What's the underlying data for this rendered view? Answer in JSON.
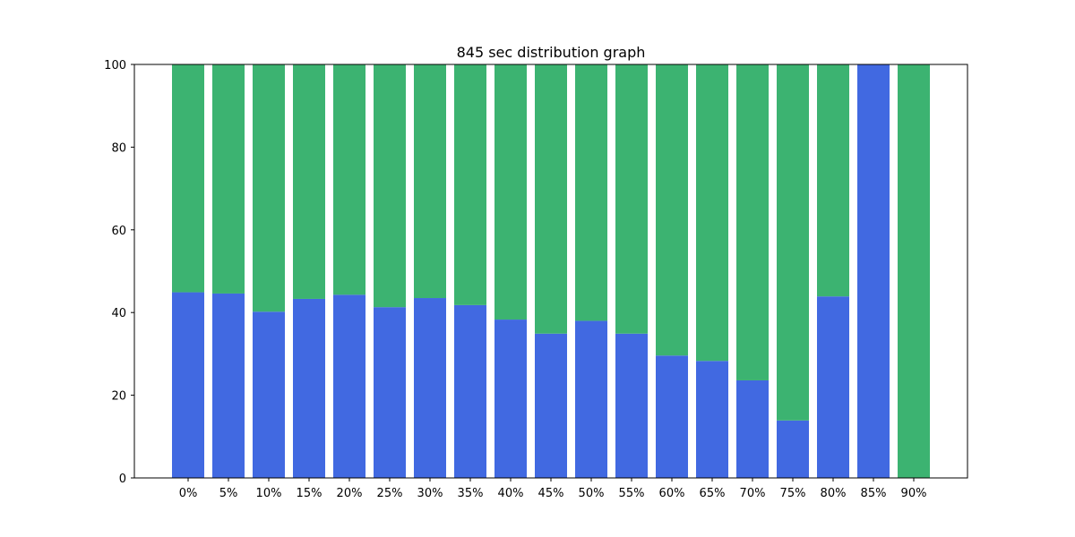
{
  "chart_data": {
    "type": "bar",
    "stacked": true,
    "title": "845 sec distribution graph",
    "xlabel": "",
    "ylabel": "",
    "categories": [
      "0%",
      "5%",
      "10%",
      "15%",
      "20%",
      "25%",
      "30%",
      "35%",
      "40%",
      "45%",
      "50%",
      "55%",
      "60%",
      "65%",
      "70%",
      "75%",
      "80%",
      "85%",
      "90%"
    ],
    "series": [
      {
        "color": "#4169e1",
        "values": [
          44.9,
          44.6,
          40.2,
          43.3,
          44.3,
          41.3,
          43.5,
          41.8,
          38.3,
          34.9,
          38.0,
          34.9,
          29.6,
          28.3,
          23.6,
          13.9,
          43.9,
          100,
          0
        ]
      },
      {
        "color": "#3cb371",
        "values": [
          55.1,
          55.4,
          59.8,
          56.7,
          55.7,
          58.7,
          56.5,
          58.2,
          61.7,
          65.1,
          62.0,
          65.1,
          70.4,
          71.7,
          76.4,
          86.1,
          56.1,
          0,
          100
        ]
      }
    ],
    "ylim": [
      0,
      100
    ],
    "yticks": [
      "0",
      "20",
      "40",
      "60",
      "80",
      "100"
    ],
    "grid": false,
    "legend": "none"
  }
}
